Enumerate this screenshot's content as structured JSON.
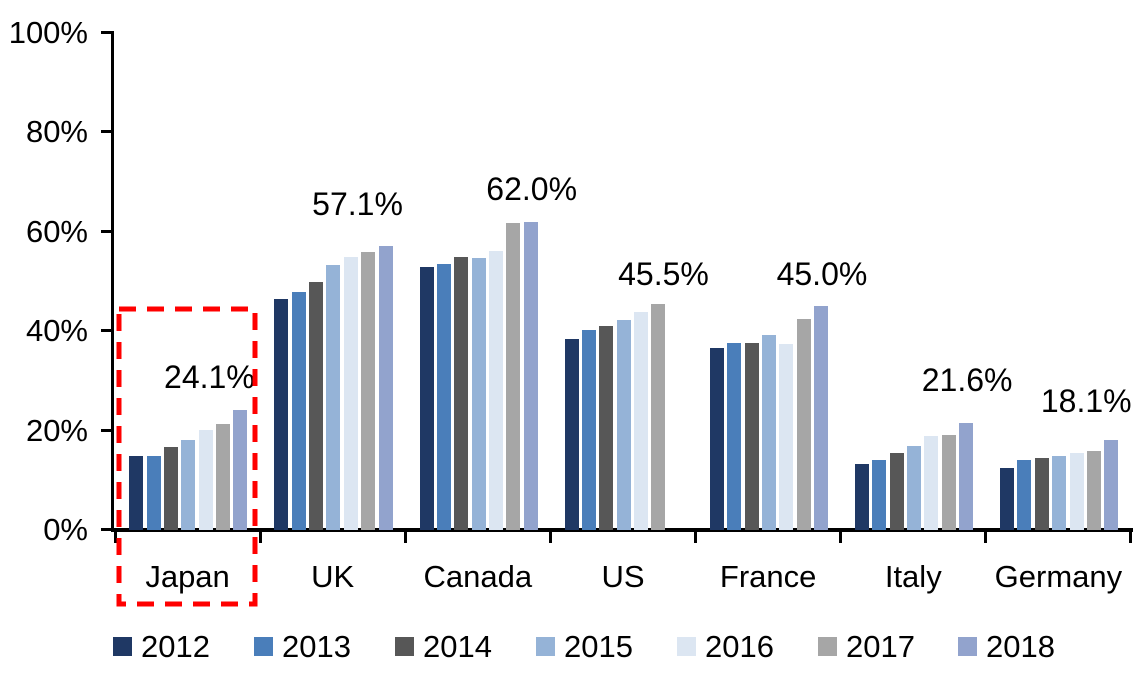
{
  "chart_data": {
    "type": "bar",
    "title": "",
    "categories": [
      "Japan",
      "UK",
      "Canada",
      "US",
      "France",
      "Italy",
      "Germany"
    ],
    "series": [
      {
        "name": "2012",
        "color": "#1F3864",
        "values": [
          14.8,
          46.5,
          53.0,
          38.4,
          36.6,
          13.3,
          12.5
        ]
      },
      {
        "name": "2013",
        "color": "#4A7EBA",
        "values": [
          14.9,
          47.9,
          53.5,
          40.2,
          37.7,
          14.1,
          14.1
        ]
      },
      {
        "name": "2014",
        "color": "#575757",
        "values": [
          16.8,
          50.0,
          55.0,
          41.1,
          37.7,
          15.4,
          14.5
        ]
      },
      {
        "name": "2015",
        "color": "#95B3D7",
        "values": [
          18.2,
          53.3,
          54.8,
          42.3,
          39.2,
          16.9,
          14.9
        ]
      },
      {
        "name": "2016",
        "color": "#DCE6F2",
        "values": [
          20.1,
          54.9,
          56.2,
          43.8,
          37.5,
          18.9,
          15.5
        ]
      },
      {
        "name": "2017",
        "color": "#A6A6A6",
        "values": [
          21.3,
          55.9,
          61.7,
          45.5,
          42.4,
          19.1,
          15.9
        ]
      },
      {
        "name": "2018",
        "color": "#92A3CD",
        "values": [
          24.1,
          57.1,
          62.0,
          null,
          45.0,
          21.6,
          18.1
        ]
      }
    ],
    "value_labels": [
      "24.1%",
      "57.1%",
      "62.0%",
      "45.5%",
      "45.0%",
      "21.6%",
      "18.1%"
    ],
    "y_axis": {
      "min": 0,
      "max": 100,
      "tick_step": 20,
      "ticks": [
        "0%",
        "20%",
        "40%",
        "60%",
        "80%",
        "100%"
      ],
      "grid": false
    },
    "legend": {
      "position": "bottom",
      "entries": [
        "2012",
        "2013",
        "2014",
        "2015",
        "2016",
        "2017",
        "2018"
      ]
    },
    "annotations": [
      {
        "shape": "dashed-rectangle",
        "around": "Japan",
        "color": "#FF0000"
      }
    ]
  }
}
